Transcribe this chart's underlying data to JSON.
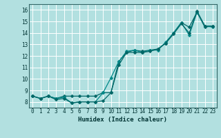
{
  "xlabel": "Humidex (Indice chaleur)",
  "bg_color": "#b2e0e0",
  "grid_color": "#ffffff",
  "line_color1": "#006666",
  "line_color2": "#008888",
  "xlim": [
    -0.5,
    23.5
  ],
  "ylim": [
    7.5,
    16.5
  ],
  "xticks": [
    0,
    1,
    2,
    3,
    4,
    5,
    6,
    7,
    8,
    9,
    10,
    11,
    12,
    13,
    14,
    15,
    16,
    17,
    18,
    19,
    20,
    21,
    22,
    23
  ],
  "yticks": [
    8,
    9,
    10,
    11,
    12,
    13,
    14,
    15,
    16
  ],
  "series1_x": [
    0,
    1,
    2,
    3,
    4,
    5,
    6,
    7,
    8,
    9,
    10,
    11,
    12,
    13,
    14,
    15,
    16,
    17,
    18,
    19,
    20,
    21,
    22,
    23
  ],
  "series1_y": [
    8.5,
    8.3,
    8.5,
    8.3,
    8.5,
    8.5,
    8.5,
    8.5,
    8.5,
    8.8,
    8.8,
    11.5,
    12.3,
    12.5,
    12.4,
    12.5,
    12.6,
    13.1,
    14.0,
    14.9,
    14.5,
    15.8,
    14.5,
    14.6
  ],
  "series2_x": [
    0,
    1,
    2,
    3,
    4,
    5,
    6,
    7,
    8,
    9,
    10,
    11,
    12,
    13,
    14,
    15,
    16,
    17,
    18,
    19,
    20,
    21,
    22,
    23
  ],
  "series2_y": [
    8.5,
    8.3,
    8.5,
    8.3,
    8.4,
    7.9,
    8.0,
    8.0,
    8.0,
    8.8,
    10.1,
    11.5,
    12.4,
    12.5,
    12.3,
    12.5,
    12.5,
    13.2,
    14.0,
    14.9,
    13.8,
    15.8,
    14.6,
    14.5
  ],
  "series3_x": [
    0,
    1,
    2,
    3,
    4,
    5,
    6,
    7,
    8,
    9,
    10,
    11,
    12,
    13,
    14,
    15,
    16,
    17,
    18,
    19,
    20,
    21,
    22,
    23
  ],
  "series3_y": [
    8.5,
    8.3,
    8.5,
    8.2,
    8.3,
    7.9,
    8.0,
    8.0,
    8.0,
    8.1,
    8.8,
    11.2,
    12.3,
    12.3,
    12.3,
    12.4,
    12.6,
    13.1,
    13.9,
    14.8,
    14.0,
    15.9,
    14.6,
    14.6
  ]
}
